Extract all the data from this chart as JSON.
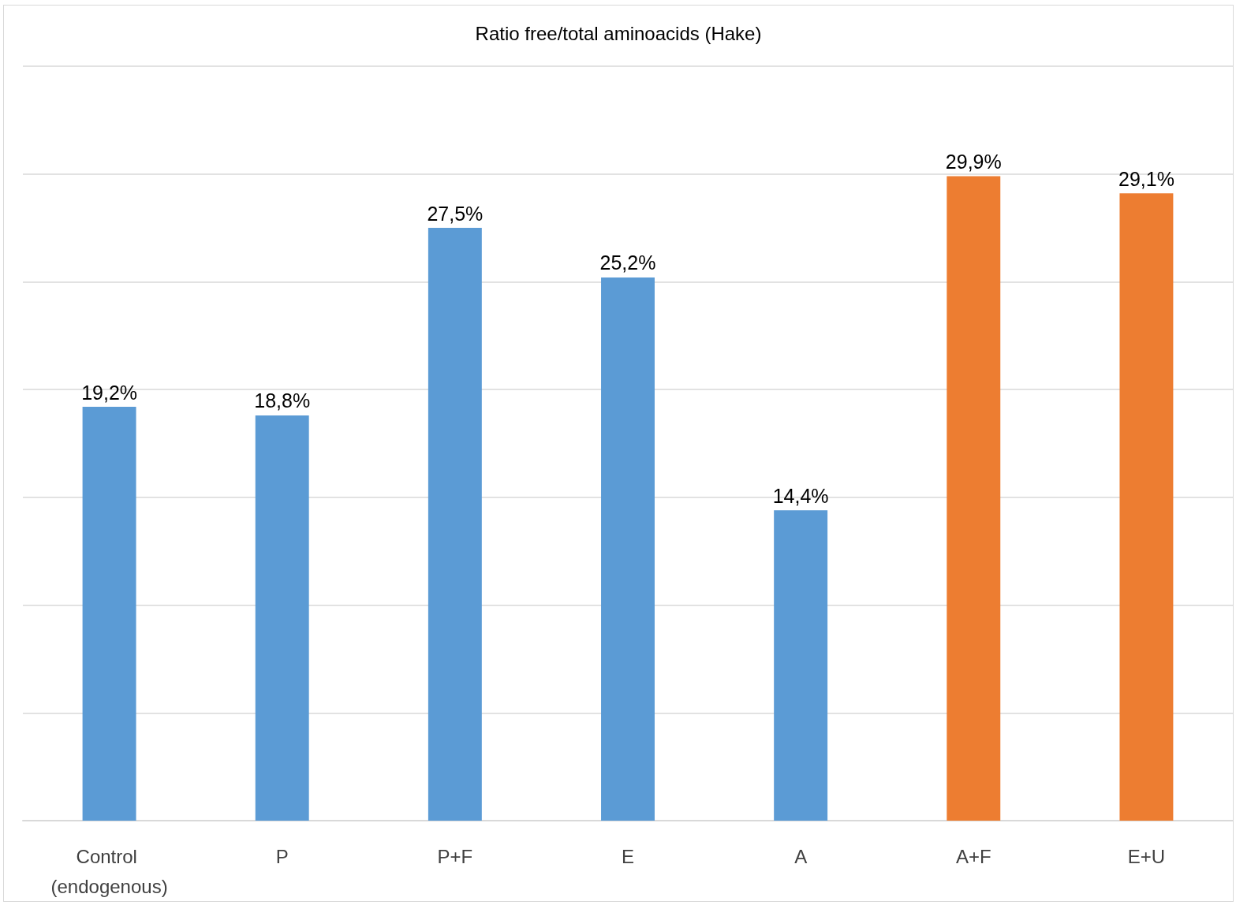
{
  "chart_data": {
    "type": "bar",
    "title": "Ratio free/total aminoacids (Hake)",
    "categories": [
      "Control (endogenous)",
      "P",
      "P+F",
      "E",
      "A",
      "A+F",
      "E+U"
    ],
    "values": [
      19.2,
      18.8,
      27.5,
      25.2,
      14.4,
      29.9,
      29.1
    ],
    "colors": [
      "#5b9bd5",
      "#5b9bd5",
      "#5b9bd5",
      "#5b9bd5",
      "#5b9bd5",
      "#ed7d31",
      "#ed7d31"
    ],
    "value_labels": [
      "19,2%",
      "18,8%",
      "27,5%",
      "25,2%",
      "14,4%",
      "29,9%",
      "29,1%"
    ],
    "ylim": [
      0,
      35
    ],
    "yticks": [
      {
        "value": 0,
        "label": null
      },
      {
        "value": 5,
        "label": null
      },
      {
        "value": 10,
        "label": null
      },
      {
        "value": 15,
        "label": null
      },
      {
        "value": 20,
        "label": null
      },
      {
        "value": 25,
        "label": null
      },
      {
        "value": 30,
        "label": null
      },
      {
        "value": 35,
        "label": null
      }
    ],
    "tick_labels": "x",
    "grid": "y"
  }
}
